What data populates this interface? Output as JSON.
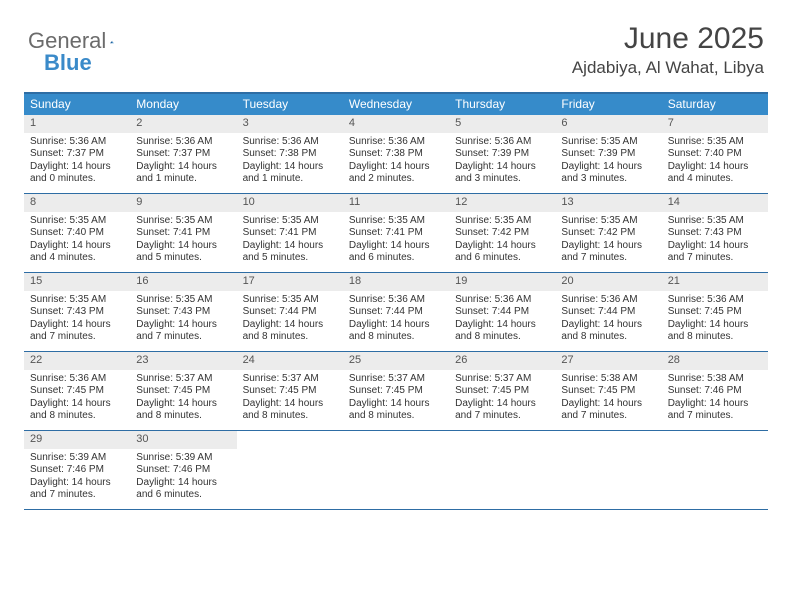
{
  "brand": {
    "part1": "General",
    "part2": "Blue"
  },
  "header": {
    "month_title": "June 2025",
    "location": "Ajdabiya, Al Wahat, Libya"
  },
  "colors": {
    "header_bar": "#368bca",
    "header_rule": "#2e6da4",
    "week_divider": "#2e6da4",
    "daynum_bg": "#ececec",
    "text": "#333333",
    "brand_grey": "#6b6b6b",
    "brand_blue": "#3a8ac9",
    "bg": "#ffffff"
  },
  "weekdays": [
    "Sunday",
    "Monday",
    "Tuesday",
    "Wednesday",
    "Thursday",
    "Friday",
    "Saturday"
  ],
  "weeks": [
    [
      {
        "n": "1",
        "sr": "5:36 AM",
        "ss": "7:37 PM",
        "dl": "14 hours and 0 minutes."
      },
      {
        "n": "2",
        "sr": "5:36 AM",
        "ss": "7:37 PM",
        "dl": "14 hours and 1 minute."
      },
      {
        "n": "3",
        "sr": "5:36 AM",
        "ss": "7:38 PM",
        "dl": "14 hours and 1 minute."
      },
      {
        "n": "4",
        "sr": "5:36 AM",
        "ss": "7:38 PM",
        "dl": "14 hours and 2 minutes."
      },
      {
        "n": "5",
        "sr": "5:36 AM",
        "ss": "7:39 PM",
        "dl": "14 hours and 3 minutes."
      },
      {
        "n": "6",
        "sr": "5:35 AM",
        "ss": "7:39 PM",
        "dl": "14 hours and 3 minutes."
      },
      {
        "n": "7",
        "sr": "5:35 AM",
        "ss": "7:40 PM",
        "dl": "14 hours and 4 minutes."
      }
    ],
    [
      {
        "n": "8",
        "sr": "5:35 AM",
        "ss": "7:40 PM",
        "dl": "14 hours and 4 minutes."
      },
      {
        "n": "9",
        "sr": "5:35 AM",
        "ss": "7:41 PM",
        "dl": "14 hours and 5 minutes."
      },
      {
        "n": "10",
        "sr": "5:35 AM",
        "ss": "7:41 PM",
        "dl": "14 hours and 5 minutes."
      },
      {
        "n": "11",
        "sr": "5:35 AM",
        "ss": "7:41 PM",
        "dl": "14 hours and 6 minutes."
      },
      {
        "n": "12",
        "sr": "5:35 AM",
        "ss": "7:42 PM",
        "dl": "14 hours and 6 minutes."
      },
      {
        "n": "13",
        "sr": "5:35 AM",
        "ss": "7:42 PM",
        "dl": "14 hours and 7 minutes."
      },
      {
        "n": "14",
        "sr": "5:35 AM",
        "ss": "7:43 PM",
        "dl": "14 hours and 7 minutes."
      }
    ],
    [
      {
        "n": "15",
        "sr": "5:35 AM",
        "ss": "7:43 PM",
        "dl": "14 hours and 7 minutes."
      },
      {
        "n": "16",
        "sr": "5:35 AM",
        "ss": "7:43 PM",
        "dl": "14 hours and 7 minutes."
      },
      {
        "n": "17",
        "sr": "5:35 AM",
        "ss": "7:44 PM",
        "dl": "14 hours and 8 minutes."
      },
      {
        "n": "18",
        "sr": "5:36 AM",
        "ss": "7:44 PM",
        "dl": "14 hours and 8 minutes."
      },
      {
        "n": "19",
        "sr": "5:36 AM",
        "ss": "7:44 PM",
        "dl": "14 hours and 8 minutes."
      },
      {
        "n": "20",
        "sr": "5:36 AM",
        "ss": "7:44 PM",
        "dl": "14 hours and 8 minutes."
      },
      {
        "n": "21",
        "sr": "5:36 AM",
        "ss": "7:45 PM",
        "dl": "14 hours and 8 minutes."
      }
    ],
    [
      {
        "n": "22",
        "sr": "5:36 AM",
        "ss": "7:45 PM",
        "dl": "14 hours and 8 minutes."
      },
      {
        "n": "23",
        "sr": "5:37 AM",
        "ss": "7:45 PM",
        "dl": "14 hours and 8 minutes."
      },
      {
        "n": "24",
        "sr": "5:37 AM",
        "ss": "7:45 PM",
        "dl": "14 hours and 8 minutes."
      },
      {
        "n": "25",
        "sr": "5:37 AM",
        "ss": "7:45 PM",
        "dl": "14 hours and 8 minutes."
      },
      {
        "n": "26",
        "sr": "5:37 AM",
        "ss": "7:45 PM",
        "dl": "14 hours and 7 minutes."
      },
      {
        "n": "27",
        "sr": "5:38 AM",
        "ss": "7:45 PM",
        "dl": "14 hours and 7 minutes."
      },
      {
        "n": "28",
        "sr": "5:38 AM",
        "ss": "7:46 PM",
        "dl": "14 hours and 7 minutes."
      }
    ],
    [
      {
        "n": "29",
        "sr": "5:39 AM",
        "ss": "7:46 PM",
        "dl": "14 hours and 7 minutes."
      },
      {
        "n": "30",
        "sr": "5:39 AM",
        "ss": "7:46 PM",
        "dl": "14 hours and 6 minutes."
      },
      null,
      null,
      null,
      null,
      null
    ]
  ],
  "labels": {
    "sunrise_prefix": "Sunrise: ",
    "sunset_prefix": "Sunset: ",
    "daylight_prefix": "Daylight: "
  },
  "typography": {
    "month_title_pt": 30,
    "location_pt": 17,
    "weekday_pt": 12,
    "day_text_pt": 10,
    "daynum_pt": 11
  }
}
